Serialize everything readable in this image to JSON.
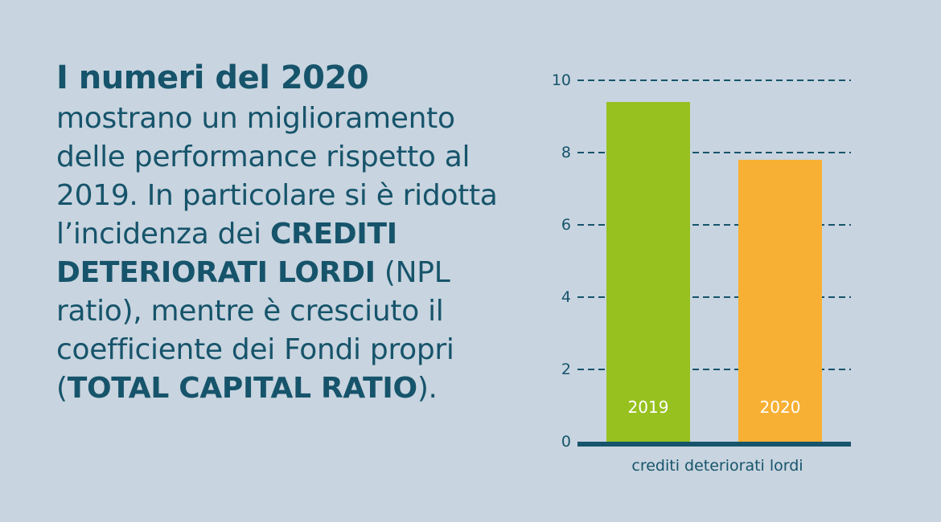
{
  "text": {
    "headline": "I numeri del 2020",
    "p1": "mostrano un miglioramento delle performance rispetto al 2019. In particolare si è ridotta l’incidenza dei",
    "bold1": "CREDITI DETERIORATI LORDI",
    "p2": " (NPL ratio), mentre è cresciuto il coefficiente dei Fondi propri (",
    "bold2": "TOTAL CAPITAL RATIO",
    "p3": ")."
  },
  "colors": {
    "text": "#16546b",
    "bar2019": "#97c11f",
    "bar2020": "#f7b033",
    "background": "#c8d4df"
  },
  "chart_data": {
    "type": "bar",
    "categories": [
      "2019",
      "2020"
    ],
    "values": [
      9.4,
      7.8
    ],
    "xlabel": "crediti deteriorati lordi",
    "ylabel": "",
    "ylim": [
      0,
      10
    ],
    "yticks": [
      0,
      2,
      4,
      6,
      8,
      10
    ],
    "grid": "dashed horizontal",
    "bar_colors": [
      "#97c11f",
      "#f7b033"
    ]
  }
}
